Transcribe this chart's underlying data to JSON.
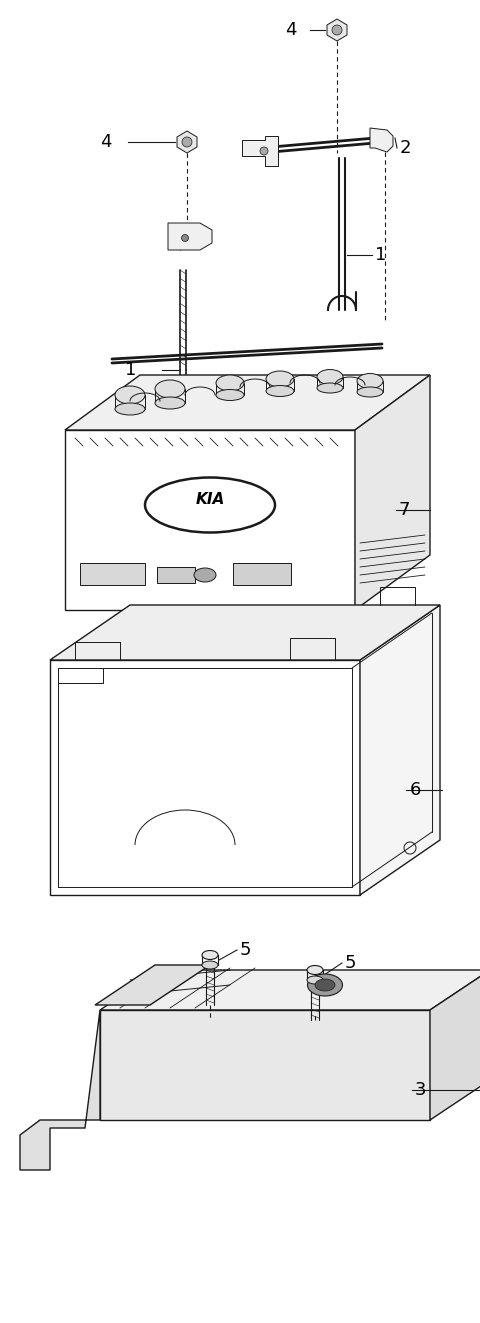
{
  "bg_color": "#ffffff",
  "line_color": "#1a1a1a",
  "fig_width": 4.8,
  "fig_height": 13.23,
  "dpi": 100,
  "label_fontsize": 13,
  "leader_lw": 0.8,
  "part_lw": 1.0,
  "dash_pattern": [
    4,
    3
  ]
}
